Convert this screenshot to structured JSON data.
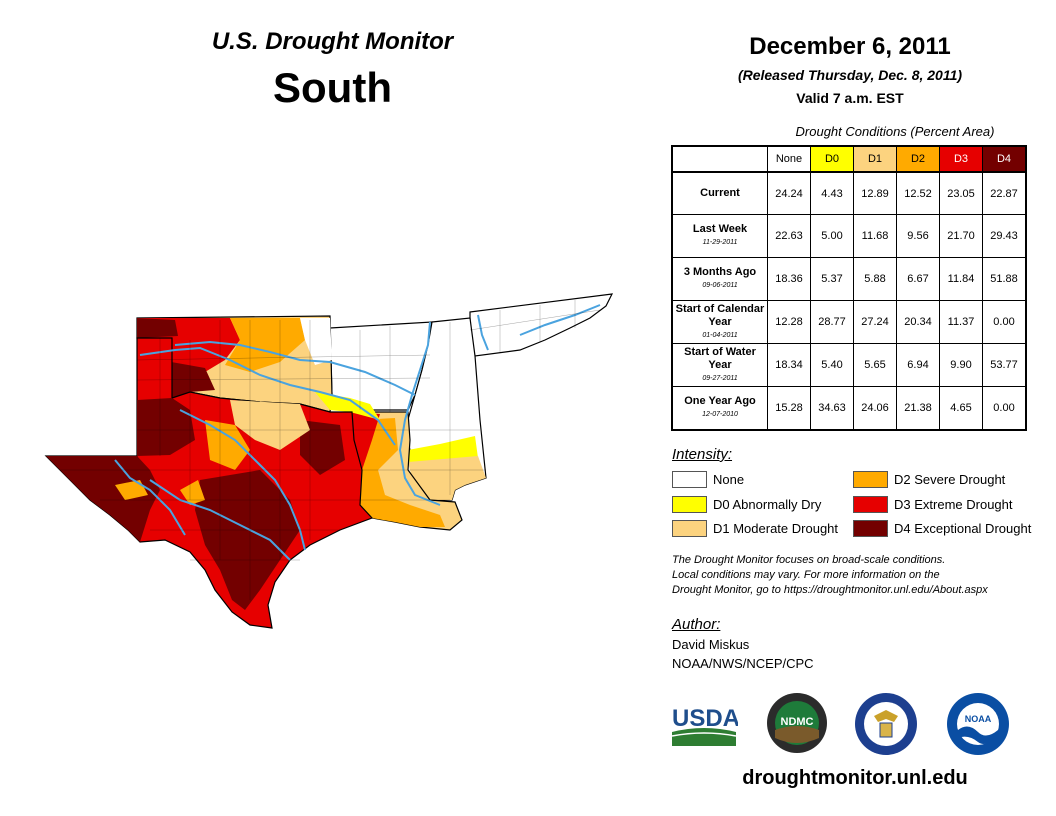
{
  "header": {
    "monitor_title": "U.S. Drought Monitor",
    "region": "South",
    "date": "December 6, 2011",
    "released": "(Released Thursday, Dec. 8, 2011)",
    "valid": "Valid 7 a.m. EST"
  },
  "table": {
    "title": "Drought Conditions (Percent Area)",
    "columns": [
      "None",
      "D0",
      "D1",
      "D2",
      "D3",
      "D4"
    ],
    "rows": [
      {
        "label": "Current",
        "sub": "",
        "values": [
          "24.24",
          "4.43",
          "12.89",
          "12.52",
          "23.05",
          "22.87"
        ]
      },
      {
        "label": "Last Week",
        "sub": "11-29-2011",
        "values": [
          "22.63",
          "5.00",
          "11.68",
          "9.56",
          "21.70",
          "29.43"
        ]
      },
      {
        "label": "3 Months Ago",
        "sub": "09-06-2011",
        "values": [
          "18.36",
          "5.37",
          "5.88",
          "6.67",
          "11.84",
          "51.88"
        ]
      },
      {
        "label": "Start of Calendar Year",
        "sub": "01-04-2011",
        "values": [
          "12.28",
          "28.77",
          "27.24",
          "20.34",
          "11.37",
          "0.00"
        ]
      },
      {
        "label": "Start of Water Year",
        "sub": "09-27-2011",
        "values": [
          "18.34",
          "5.40",
          "5.65",
          "6.94",
          "9.90",
          "53.77"
        ]
      },
      {
        "label": "One Year Ago",
        "sub": "12-07-2010",
        "values": [
          "15.28",
          "34.63",
          "24.06",
          "21.38",
          "4.65",
          "0.00"
        ]
      }
    ]
  },
  "legend": {
    "title": "Intensity:",
    "items": [
      {
        "label": "None",
        "color": "#ffffff"
      },
      {
        "label": "D0 Abnormally Dry",
        "color": "#ffff00"
      },
      {
        "label": "D1 Moderate Drought",
        "color": "#fcd37f"
      },
      {
        "label": "D2 Severe Drought",
        "color": "#ffaa00"
      },
      {
        "label": "D3 Extreme Drought",
        "color": "#e60000"
      },
      {
        "label": "D4 Exceptional Drought",
        "color": "#730000"
      }
    ]
  },
  "note": {
    "line1": "The Drought Monitor focuses on broad-scale conditions.",
    "line2": "Local conditions may vary. For more information on the",
    "line3": "Drought Monitor, go to https://droughtmonitor.unl.edu/About.aspx"
  },
  "author": {
    "title": "Author:",
    "name": "David Miskus",
    "org": "NOAA/NWS/NCEP/CPC"
  },
  "logos": {
    "usda": "USDA",
    "ndmc": "NDMC",
    "noaa": "NOAA"
  },
  "footer": {
    "url": "droughtmonitor.unl.edu"
  },
  "colors": {
    "none": "#ffffff",
    "d0": "#ffff00",
    "d1": "#fcd37f",
    "d2": "#ffaa00",
    "d3": "#e60000",
    "d4": "#730000",
    "river": "#4aa3df"
  }
}
